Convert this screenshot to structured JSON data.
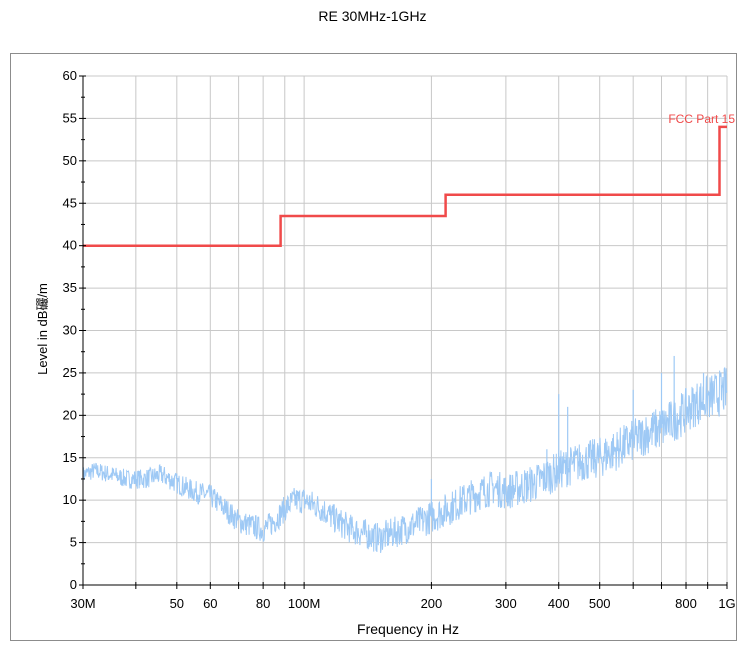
{
  "chart_data": {
    "type": "line",
    "title": "RE 30MHz-1GHz",
    "xlabel": "Frequency in Hz",
    "ylabel": "Level in dB礹/m",
    "x_scale": "log",
    "xlim": [
      30000000,
      1000000000
    ],
    "ylim": [
      0,
      60
    ],
    "grid": true,
    "y_ticks": [
      0,
      5,
      10,
      15,
      20,
      25,
      30,
      35,
      40,
      45,
      50,
      55,
      60
    ],
    "x_ticks": [
      {
        "value": 30000000,
        "label": "30M"
      },
      {
        "value": 50000000,
        "label": "50"
      },
      {
        "value": 60000000,
        "label": "60"
      },
      {
        "value": 80000000,
        "label": "80"
      },
      {
        "value": 100000000,
        "label": "100M"
      },
      {
        "value": 200000000,
        "label": "200"
      },
      {
        "value": 300000000,
        "label": "300"
      },
      {
        "value": 400000000,
        "label": "400"
      },
      {
        "value": 500000000,
        "label": "500"
      },
      {
        "value": 800000000,
        "label": "800"
      },
      {
        "value": 1000000000,
        "label": "1G"
      }
    ],
    "x_gridlines": [
      30000000,
      40000000,
      50000000,
      60000000,
      70000000,
      80000000,
      90000000,
      100000000,
      200000000,
      300000000,
      400000000,
      500000000,
      600000000,
      700000000,
      800000000,
      900000000,
      1000000000
    ],
    "limit_line": {
      "name": "FCC Part 15",
      "color": "#f04a4a",
      "points": [
        [
          30000000,
          40
        ],
        [
          88000000,
          40
        ],
        [
          88000000,
          43.5
        ],
        [
          216000000,
          43.5
        ],
        [
          216000000,
          46
        ],
        [
          960000000,
          46
        ],
        [
          960000000,
          54
        ],
        [
          1000000000,
          54
        ]
      ]
    },
    "series": [
      {
        "color": "#9ec9f5",
        "x": [
          30000000,
          32000000,
          35000000,
          38000000,
          42000000,
          46000000,
          50000000,
          55000000,
          60000000,
          65000000,
          70000000,
          75000000,
          80000000,
          85000000,
          90000000,
          95000000,
          100000000,
          110000000,
          120000000,
          130000000,
          140000000,
          150000000,
          160000000,
          180000000,
          200000000,
          220000000,
          250000000,
          280000000,
          300000000,
          350000000,
          400000000,
          450000000,
          500000000,
          550000000,
          600000000,
          650000000,
          700000000,
          750000000,
          800000000,
          850000000,
          900000000,
          950000000,
          1000000000
        ],
        "y": [
          13,
          13.5,
          13,
          12.5,
          12.5,
          13,
          12,
          11,
          10.5,
          9,
          7.5,
          7,
          6.5,
          7.5,
          9,
          10,
          10,
          9,
          7.5,
          6.5,
          6,
          5.5,
          6,
          7,
          8,
          9,
          10.5,
          11.5,
          11,
          12,
          13.5,
          14.5,
          15,
          16,
          17,
          18,
          18.5,
          19.5,
          20.5,
          21.5,
          22,
          22.5,
          23
        ]
      }
    ],
    "spikes": [
      {
        "x": 200000000,
        "y": 12.5
      },
      {
        "x": 375000000,
        "y": 16
      },
      {
        "x": 400000000,
        "y": 22.5
      },
      {
        "x": 420000000,
        "y": 21
      },
      {
        "x": 600000000,
        "y": 23
      },
      {
        "x": 700000000,
        "y": 25
      },
      {
        "x": 750000000,
        "y": 27
      },
      {
        "x": 880000000,
        "y": 25
      }
    ]
  }
}
